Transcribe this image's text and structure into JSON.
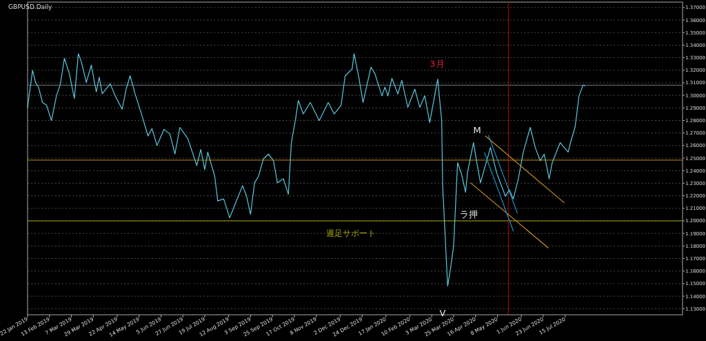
{
  "chart_data": {
    "type": "line",
    "title": "GBPUSD.Daily",
    "grid": "y",
    "xlim": [
      "2019-01-22",
      "2020-11-10"
    ],
    "ylim": [
      1.1252,
      1.3743
    ],
    "xticks": [
      {
        "value": "2019-01-22",
        "label": "22 Jan 2019"
      },
      {
        "value": "2019-02-13",
        "label": "13 Feb 2019"
      },
      {
        "value": "2019-03-07",
        "label": "7 Mar 2019"
      },
      {
        "value": "2019-03-29",
        "label": "29 Mar 2019"
      },
      {
        "value": "2019-04-22",
        "label": "22 Apr 2019"
      },
      {
        "value": "2019-05-14",
        "label": "14 May 2019"
      },
      {
        "value": "2019-06-05",
        "label": "5 Jun 2019"
      },
      {
        "value": "2019-06-27",
        "label": "27 Jun 2019"
      },
      {
        "value": "2019-07-19",
        "label": "19 Jul 2019"
      },
      {
        "value": "2019-08-12",
        "label": "12 Aug 2019"
      },
      {
        "value": "2019-09-03",
        "label": "3 Sep 2019"
      },
      {
        "value": "2019-09-25",
        "label": "25 Sep 2019"
      },
      {
        "value": "2019-10-17",
        "label": "17 Oct 2019"
      },
      {
        "value": "2019-11-08",
        "label": "8 Nov 2019"
      },
      {
        "value": "2019-12-02",
        "label": "2 Dec 2019"
      },
      {
        "value": "2019-12-24",
        "label": "24 Dec 2019"
      },
      {
        "value": "2020-01-17",
        "label": "17 Jan 2020"
      },
      {
        "value": "2020-02-10",
        "label": "10 Feb 2020"
      },
      {
        "value": "2020-03-03",
        "label": "3 Mar 2020"
      },
      {
        "value": "2020-03-25",
        "label": "25 Mar 2020"
      },
      {
        "value": "2020-04-16",
        "label": "16 Apr 2020"
      },
      {
        "value": "2020-05-08",
        "label": "8 May 2020"
      },
      {
        "value": "2020-06-01",
        "label": "1 Jun 2020"
      },
      {
        "value": "2020-06-23",
        "label": "23 Jun 2020"
      },
      {
        "value": "2020-07-15",
        "label": "15 Jul 2020"
      }
    ],
    "yticks": [
      {
        "value": 1.13,
        "label": "1.13000"
      },
      {
        "value": 1.14,
        "label": "1.14000"
      },
      {
        "value": 1.15,
        "label": "1.15000"
      },
      {
        "value": 1.16,
        "label": "1.16000"
      },
      {
        "value": 1.17,
        "label": "1.17000"
      },
      {
        "value": 1.18,
        "label": "1.18000"
      },
      {
        "value": 1.19,
        "label": "1.19000"
      },
      {
        "value": 1.2,
        "label": "1.20000"
      },
      {
        "value": 1.21,
        "label": "1.21000"
      },
      {
        "value": 1.22,
        "label": "1.22000"
      },
      {
        "value": 1.23,
        "label": "1.23000"
      },
      {
        "value": 1.24,
        "label": "1.24000"
      },
      {
        "value": 1.25,
        "label": "1.25000"
      },
      {
        "value": 1.26,
        "label": "1.26000"
      },
      {
        "value": 1.27,
        "label": "1.27000"
      },
      {
        "value": 1.28,
        "label": "1.28000"
      },
      {
        "value": 1.29,
        "label": "1.29000"
      },
      {
        "value": 1.3,
        "label": "1.30000"
      },
      {
        "value": 1.31,
        "label": "1.31000"
      },
      {
        "value": 1.32,
        "label": "1.32000"
      },
      {
        "value": 1.33,
        "label": "1.33000"
      },
      {
        "value": 1.34,
        "label": "1.34000"
      },
      {
        "value": 1.35,
        "label": "1.35000"
      },
      {
        "value": 1.36,
        "label": "1.36000"
      },
      {
        "value": 1.37,
        "label": "1.37000"
      }
    ],
    "series": [
      {
        "color": "#5cc8e0",
        "x": [
          "2019-01-22",
          "2019-01-27",
          "2019-01-30",
          "2019-02-02",
          "2019-02-06",
          "2019-02-10",
          "2019-02-15",
          "2019-02-20",
          "2019-02-24",
          "2019-02-28",
          "2019-03-05",
          "2019-03-10",
          "2019-03-14",
          "2019-03-17",
          "2019-03-22",
          "2019-03-27",
          "2019-04-01",
          "2019-04-04",
          "2019-04-07",
          "2019-04-15",
          "2019-04-20",
          "2019-04-27",
          "2019-05-01",
          "2019-05-05",
          "2019-05-10",
          "2019-05-17",
          "2019-05-23",
          "2019-05-27",
          "2019-06-01",
          "2019-06-08",
          "2019-06-14",
          "2019-06-19",
          "2019-06-24",
          "2019-07-02",
          "2019-07-11",
          "2019-07-15",
          "2019-07-19",
          "2019-07-22",
          "2019-07-26",
          "2019-07-29",
          "2019-08-01",
          "2019-08-07",
          "2019-08-13",
          "2019-08-19",
          "2019-08-26",
          "2019-08-30",
          "2019-09-03",
          "2019-09-07",
          "2019-09-11",
          "2019-09-16",
          "2019-09-21",
          "2019-09-26",
          "2019-09-30",
          "2019-10-06",
          "2019-10-11",
          "2019-10-14",
          "2019-10-18",
          "2019-10-21",
          "2019-10-26",
          "2019-11-02",
          "2019-11-11",
          "2019-11-20",
          "2019-11-26",
          "2019-12-03",
          "2019-12-07",
          "2019-12-14",
          "2019-12-16",
          "2019-12-21",
          "2019-12-25",
          "2020-01-02",
          "2020-01-06",
          "2020-01-13",
          "2020-01-16",
          "2020-01-19",
          "2020-01-23",
          "2020-01-29",
          "2020-02-02",
          "2020-02-08",
          "2020-02-15",
          "2020-02-20",
          "2020-02-25",
          "2020-03-01",
          "2020-03-09",
          "2020-03-13",
          "2020-03-14",
          "2020-03-19",
          "2020-03-22",
          "2020-03-25",
          "2020-03-29",
          "2020-04-02",
          "2020-04-06",
          "2020-04-08",
          "2020-04-14",
          "2020-04-17",
          "2020-04-21",
          "2020-05-01",
          "2020-05-07",
          "2020-05-16",
          "2020-05-20",
          "2020-05-24",
          "2020-05-29",
          "2020-06-03",
          "2020-06-10",
          "2020-06-15",
          "2020-06-20",
          "2020-06-24",
          "2020-06-29",
          "2020-07-02",
          "2020-07-10",
          "2020-07-18",
          "2020-07-21",
          "2020-07-25",
          "2020-07-29",
          "2020-08-02",
          "2020-08-04"
        ],
        "values": [
          1.2905,
          1.3199,
          1.3103,
          1.3065,
          1.2943,
          1.2922,
          1.2799,
          1.2996,
          1.3092,
          1.3295,
          1.3172,
          1.2975,
          1.3332,
          1.3268,
          1.3103,
          1.3241,
          1.3028,
          1.3145,
          1.3012,
          1.3092,
          1.2996,
          1.2889,
          1.3049,
          1.3156,
          1.3012,
          1.2836,
          1.2676,
          1.2735,
          1.2601,
          1.2729,
          1.2692,
          1.2532,
          1.2745,
          1.2655,
          1.2441,
          1.2569,
          1.2409,
          1.2548,
          1.2436,
          1.2356,
          1.2159,
          1.2175,
          1.2025,
          1.2143,
          1.2281,
          1.2196,
          1.2052,
          1.2303,
          1.2356,
          1.2495,
          1.2532,
          1.2479,
          1.2303,
          1.2335,
          1.2212,
          1.2623,
          1.2799,
          1.2959,
          1.2852,
          1.2943,
          1.2799,
          1.2943,
          1.2852,
          1.2922,
          1.3156,
          1.3209,
          1.3332,
          1.3135,
          1.2943,
          1.3225,
          1.3172,
          1.2996,
          1.3065,
          1.2996,
          1.3135,
          1.3012,
          1.3119,
          1.2905,
          1.3049,
          1.2905,
          1.2996,
          1.2783,
          1.3129,
          1.2799,
          1.2281,
          1.1481,
          1.1625,
          1.1801,
          1.2463,
          1.2372,
          1.2228,
          1.2388,
          1.2623,
          1.2479,
          1.2303,
          1.2585,
          1.2388,
          1.2196,
          1.2249,
          1.2175,
          1.2335,
          1.2548,
          1.2745,
          1.2585,
          1.2479,
          1.2532,
          1.2335,
          1.2463,
          1.2623,
          1.2548,
          1.2639,
          1.2745,
          1.2996,
          1.3081,
          1.3076
        ]
      },
      {
        "color": "#c8901e",
        "x": [
          "2020-04-26",
          "2020-07-14"
        ],
        "values": [
          1.2676,
          1.2145
        ]
      },
      {
        "color": "#c8901e",
        "x": [
          "2020-04-11",
          "2020-06-28"
        ],
        "values": [
          1.2303,
          1.1785
        ]
      },
      {
        "color": "#1e90c8",
        "x": [
          "2020-04-29",
          "2020-05-28"
        ],
        "values": [
          1.2681,
          1.2063
        ]
      },
      {
        "color": "#1e90c8",
        "x": [
          "2020-04-25",
          "2020-05-24"
        ],
        "values": [
          1.2543,
          1.1919
        ]
      }
    ],
    "ref_lines": [
      {
        "axis": "y",
        "value": 1.2,
        "label": "週足サポート",
        "color": "#a0a010"
      },
      {
        "axis": "y",
        "value": 1.2484,
        "color": "#c08a10"
      },
      {
        "axis": "y",
        "value": 1.3081,
        "color": "#707880"
      },
      {
        "axis": "x",
        "value": "2020-05-19",
        "color": "#c00000"
      }
    ],
    "annotations": [
      "3月",
      "M",
      "ラ押",
      "V"
    ]
  }
}
